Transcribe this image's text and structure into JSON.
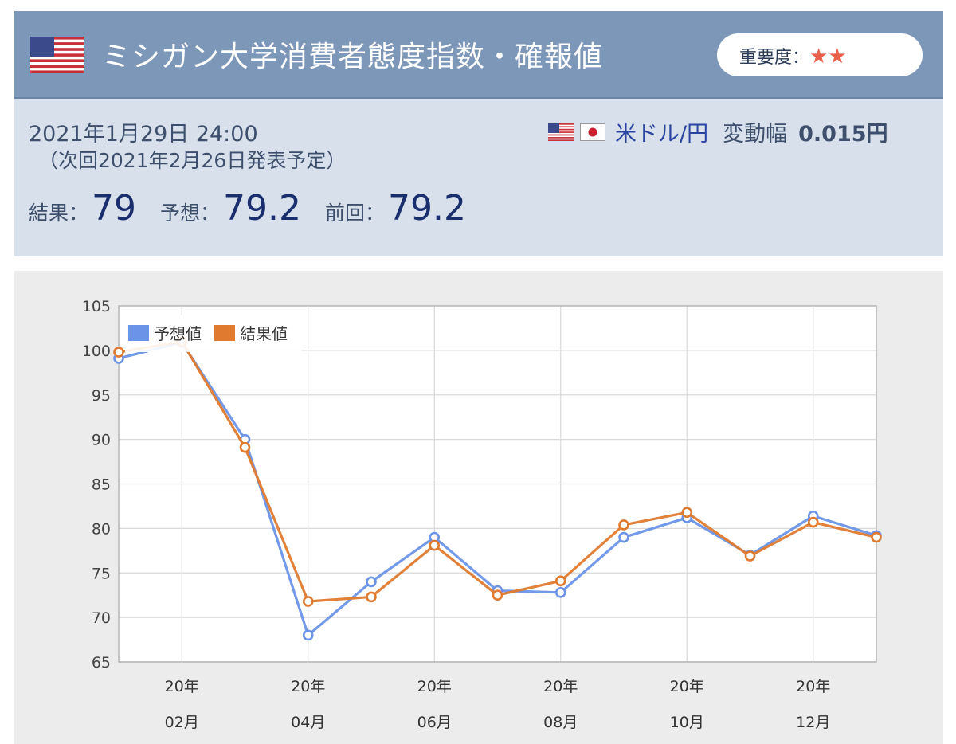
{
  "header": {
    "title": "ミシガン大学消費者態度指数・確報値",
    "importance_label": "重要度：",
    "importance_stars": "★★",
    "flag_icon": "us-flag-icon"
  },
  "info": {
    "datetime": "2021年1月29日 24:00",
    "next_release": "（次回2021年2月26日発表予定）",
    "pair_label": "米ドル/円",
    "range_label": "変動幅",
    "range_value": "0.015円",
    "result_label": "結果：",
    "result_value": "79",
    "forecast_label": "予想：",
    "forecast_value": "79.2",
    "previous_label": "前回：",
    "previous_value": "79.2"
  },
  "colors": {
    "header_bg": "#7d97b9",
    "forecast_line": "#6b93e8",
    "result_line": "#e07a2e",
    "value_text": "#1a2e6e"
  },
  "chart_data": {
    "type": "line",
    "ylim": [
      65,
      105
    ],
    "yticks": [
      "65",
      "70",
      "75",
      "80",
      "85",
      "90",
      "95",
      "100",
      "105"
    ],
    "xtick_labels": [
      {
        "top": "20年",
        "bottom": "02月"
      },
      {
        "top": "20年",
        "bottom": "04月"
      },
      {
        "top": "20年",
        "bottom": "06月"
      },
      {
        "top": "20年",
        "bottom": "08月"
      },
      {
        "top": "20年",
        "bottom": "10月"
      },
      {
        "top": "20年",
        "bottom": "12月"
      }
    ],
    "legend_placement": "top-left",
    "grid": true,
    "series": [
      {
        "name": "予想値",
        "color": "#6b93e8",
        "values": [
          99.1,
          100.9,
          90.0,
          68.0,
          74.0,
          79.0,
          73.0,
          72.8,
          79.0,
          81.2,
          77.0,
          81.4,
          79.2
        ]
      },
      {
        "name": "結果値",
        "color": "#e07a2e",
        "values": [
          99.8,
          101.0,
          89.1,
          71.8,
          72.3,
          78.1,
          72.5,
          74.1,
          80.4,
          81.8,
          76.9,
          80.7,
          79.0
        ]
      }
    ]
  }
}
